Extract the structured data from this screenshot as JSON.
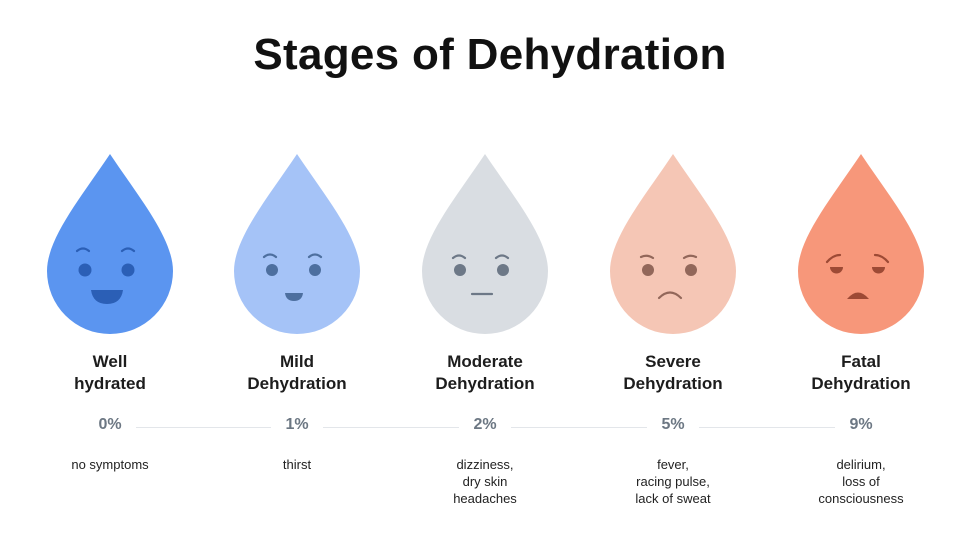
{
  "title": "Stages of Dehydration",
  "stages": [
    {
      "name_lines": [
        "Well",
        "hydrated"
      ],
      "percent": "0%",
      "symptoms": [
        "no symptoms"
      ],
      "mood": "happy",
      "drop_color": "#5b95f0",
      "feature_color": "#2b5fb6"
    },
    {
      "name_lines": [
        "Mild",
        "Dehydration"
      ],
      "percent": "1%",
      "symptoms": [
        "thirst"
      ],
      "mood": "content",
      "drop_color": "#a5c3f7",
      "feature_color": "#4d6f9f"
    },
    {
      "name_lines": [
        "Moderate",
        "Dehydration"
      ],
      "percent": "2%",
      "symptoms": [
        "dizziness,",
        "dry skin",
        "headaches"
      ],
      "mood": "neutral",
      "drop_color": "#d9dde2",
      "feature_color": "#6d7887"
    },
    {
      "name_lines": [
        "Severe",
        "Dehydration"
      ],
      "percent": "5%",
      "symptoms": [
        "fever,",
        "racing pulse,",
        "lack of sweat"
      ],
      "mood": "sad",
      "drop_color": "#f5c6b5",
      "feature_color": "#92675a"
    },
    {
      "name_lines": [
        "Fatal",
        "Dehydration"
      ],
      "percent": "9%",
      "symptoms": [
        "delirium,",
        "loss of",
        "consciousness"
      ],
      "mood": "distressed",
      "drop_color": "#f7977a",
      "feature_color": "#9d4a35"
    }
  ]
}
